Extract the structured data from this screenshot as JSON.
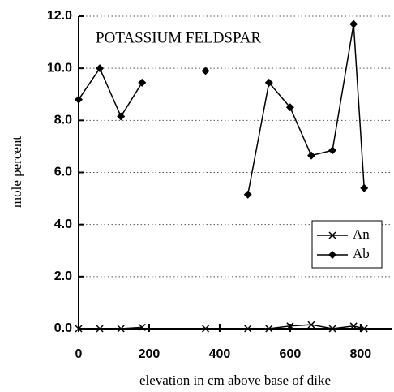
{
  "chart_data": {
    "type": "line",
    "annotation": "POTASSIUM FELDSPAR",
    "xlabel": "elevation in cm above base of dike",
    "ylabel": "mole percent",
    "x": [
      0,
      60,
      120,
      180,
      270,
      360,
      420,
      480,
      540,
      600,
      660,
      720,
      780,
      810
    ],
    "series": [
      {
        "name": "An",
        "color": "#000000",
        "marker": "x",
        "values": [
          0,
          0,
          0,
          0.05,
          null,
          0,
          null,
          0,
          0,
          0.1,
          0.15,
          0,
          0.1,
          0
        ]
      },
      {
        "name": "Ab",
        "color": "#000000",
        "marker": "diamond",
        "values": [
          8.8,
          10.0,
          8.15,
          9.45,
          null,
          9.9,
          null,
          5.15,
          9.45,
          8.5,
          6.65,
          6.85,
          11.7,
          5.4
        ]
      }
    ],
    "xlim": [
      0,
      890
    ],
    "xticks": [
      0,
      200,
      400,
      600,
      800
    ],
    "ylim": [
      0,
      12
    ],
    "yticks": [
      {
        "value": 0,
        "label": "0.0"
      },
      {
        "value": 2,
        "label": "2.0"
      },
      {
        "value": 4,
        "label": "4.0"
      },
      {
        "value": 6,
        "label": "6.0"
      },
      {
        "value": 8,
        "label": "8.0"
      },
      {
        "value": 10,
        "label": "10.0"
      },
      {
        "value": 12,
        "label": "12.0"
      }
    ],
    "grid": true,
    "legend": "lower right"
  }
}
